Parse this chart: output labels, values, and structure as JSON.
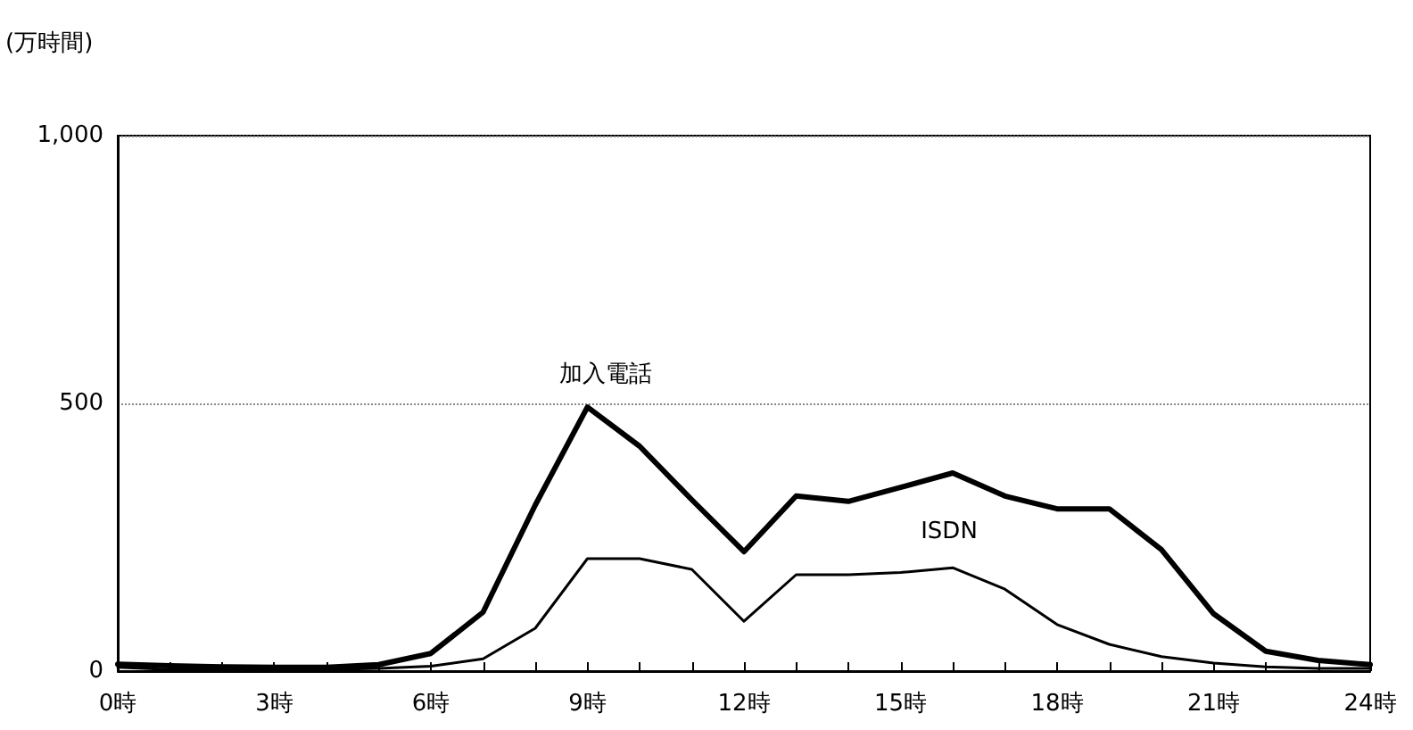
{
  "chart_data": {
    "type": "line",
    "ylabel": "(万時間)",
    "x": [
      0,
      1,
      2,
      3,
      4,
      5,
      6,
      7,
      8,
      9,
      10,
      11,
      12,
      13,
      14,
      15,
      16,
      17,
      18,
      19,
      20,
      21,
      22,
      23,
      24
    ],
    "series": [
      {
        "name": "加入電話",
        "color": "#000000",
        "values": [
          13,
          10,
          8,
          7,
          7,
          12,
          33,
          110,
          310,
          493,
          420,
          320,
          223,
          327,
          317,
          343,
          370,
          327,
          303,
          303,
          227,
          107,
          37,
          20,
          12
        ]
      },
      {
        "name": "ISDN",
        "color": "#000000",
        "values": [
          7,
          3,
          3,
          3,
          3,
          5,
          9,
          23,
          80,
          210,
          210,
          190,
          93,
          180,
          180,
          184,
          193,
          153,
          87,
          50,
          27,
          15,
          8,
          5,
          5
        ]
      }
    ],
    "xlim": [
      0,
      24
    ],
    "xticks": [
      {
        "value": 0,
        "label": "0時"
      },
      {
        "value": 1,
        "label": null
      },
      {
        "value": 2,
        "label": null
      },
      {
        "value": 3,
        "label": "3時"
      },
      {
        "value": 4,
        "label": null
      },
      {
        "value": 5,
        "label": null
      },
      {
        "value": 6,
        "label": "6時"
      },
      {
        "value": 7,
        "label": null
      },
      {
        "value": 8,
        "label": null
      },
      {
        "value": 9,
        "label": "9時"
      },
      {
        "value": 10,
        "label": null
      },
      {
        "value": 11,
        "label": null
      },
      {
        "value": 12,
        "label": "12時"
      },
      {
        "value": 13,
        "label": null
      },
      {
        "value": 14,
        "label": null
      },
      {
        "value": 15,
        "label": "15時"
      },
      {
        "value": 16,
        "label": null
      },
      {
        "value": 17,
        "label": null
      },
      {
        "value": 18,
        "label": "18時"
      },
      {
        "value": 19,
        "label": null
      },
      {
        "value": 20,
        "label": null
      },
      {
        "value": 21,
        "label": "21時"
      },
      {
        "value": 22,
        "label": null
      },
      {
        "value": 23,
        "label": null
      },
      {
        "value": 24,
        "label": "24時"
      }
    ],
    "ylim": [
      0,
      1000
    ],
    "yticks": [
      0,
      500,
      {
        "value": 1000,
        "label": "1,000"
      }
    ],
    "grid": "y",
    "legend": false,
    "marker": "none",
    "line_style": "solid"
  }
}
